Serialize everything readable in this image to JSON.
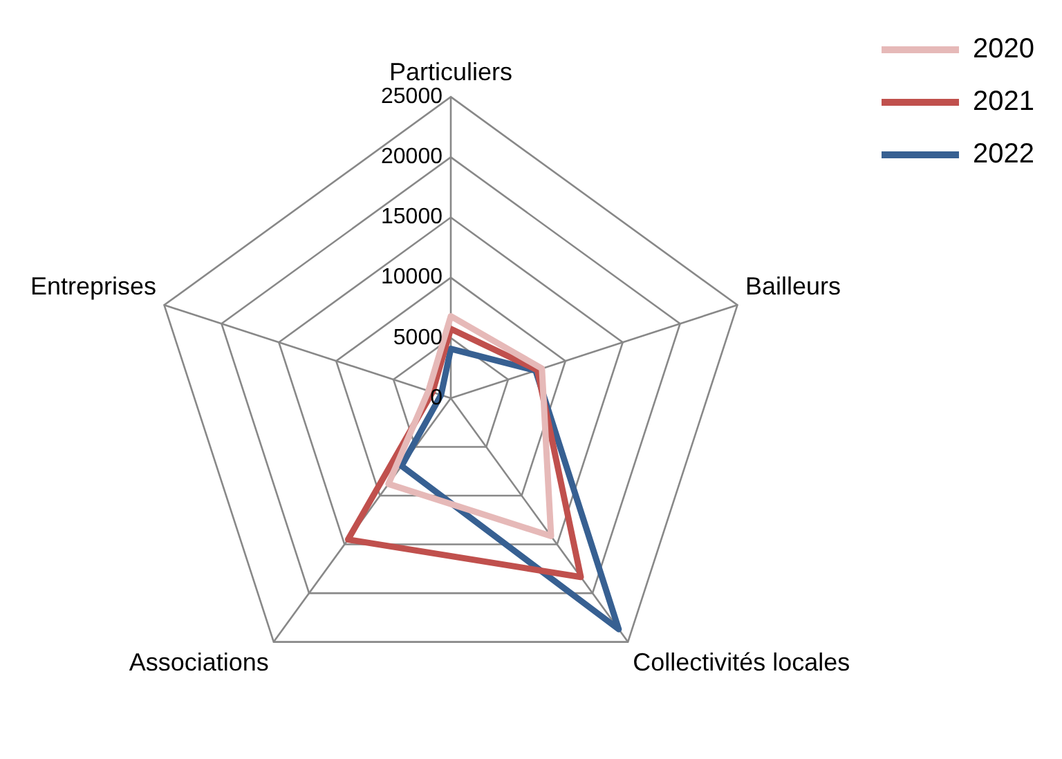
{
  "chart_data": {
    "type": "radar",
    "categories": [
      "Particuliers",
      "Bailleurs",
      "Collectivités locales",
      "Associations",
      "Entreprises"
    ],
    "series": [
      {
        "name": "2020",
        "color": "#e6b9b8",
        "values": [
          6800,
          7950,
          14150,
          8800,
          1950
        ]
      },
      {
        "name": "2021",
        "color": "#c0504d",
        "values": [
          5750,
          7550,
          18350,
          14500,
          1600
        ]
      },
      {
        "name": "2022",
        "color": "#376092",
        "values": [
          4100,
          7400,
          23700,
          6950,
          850
        ]
      }
    ],
    "ylim": [
      0,
      25000
    ],
    "yticks": [
      0,
      5000,
      10000,
      15000,
      20000,
      25000
    ],
    "grid": true,
    "legend": "top right",
    "marker": "none"
  }
}
